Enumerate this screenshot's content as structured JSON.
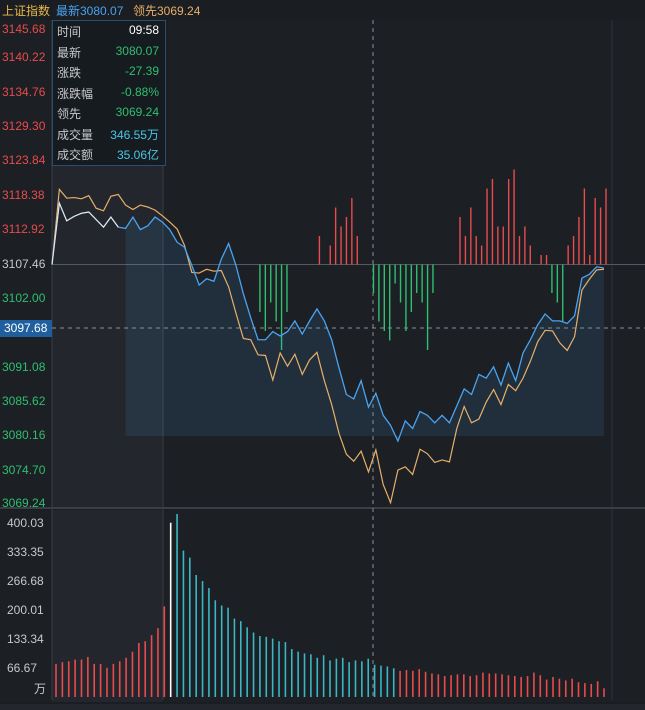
{
  "header": {
    "index_name": "上证指数",
    "latest_label": "最新",
    "latest_value": "3080.07",
    "leading_label": "领先",
    "leading_value": "3069.24"
  },
  "price_axis": {
    "labels": [
      "3145.68",
      "3140.22",
      "3134.76",
      "3129.30",
      "3123.84",
      "3118.38",
      "3112.92",
      "3107.46",
      "3102.00",
      "3091.08",
      "3085.62",
      "3080.16",
      "3074.70",
      "3069.24"
    ],
    "cursor_price": "3097.68"
  },
  "volume_axis": {
    "labels": [
      "400.03",
      "333.35",
      "266.68",
      "200.01",
      "133.34",
      "66.67"
    ],
    "unit": "万"
  },
  "tooltip": {
    "rows": [
      {
        "key": "时间",
        "value": "09:58"
      },
      {
        "key": "最新",
        "value": "3080.07"
      },
      {
        "key": "涨跌",
        "value": "-27.39"
      },
      {
        "key": "涨跌幅",
        "value": "-0.88%"
      },
      {
        "key": "领先",
        "value": "3069.24"
      },
      {
        "key": "成交量",
        "value": "346.55万"
      },
      {
        "key": "成交额",
        "value": "35.06亿"
      }
    ]
  },
  "colors": {
    "up": "#e84c4c",
    "down": "#2fbf6f",
    "price_line": "#4aa3f0",
    "lead_line": "#e7b06a",
    "time_text": "#ffffff",
    "volume_text": "#49c6e5",
    "cyan_bar": "#3ab7c4"
  },
  "chart_data": {
    "type": "line",
    "prev_close": 3107.46,
    "ylim": [
      3069.24,
      3145.68
    ],
    "price": [
      3107.46,
      3117.2,
      3114.4,
      3115.1,
      3115.6,
      3115.8,
      3114.6,
      3113.4,
      3115.0,
      3113.4,
      3113.2,
      3115.0,
      3113.0,
      3113.6,
      3115.0,
      3114.2,
      3113.0,
      3111.0,
      3110.2,
      3107.3,
      3104.2,
      3105.2,
      3104.8,
      3108.3,
      3110.8,
      3107.3,
      3102.8,
      3099.0,
      3095.5,
      3095.5,
      3096.8,
      3096.1,
      3096.8,
      3098.5,
      3096.4,
      3098.5,
      3100.4,
      3098.5,
      3095.5,
      3091.0,
      3086.8,
      3086.1,
      3089.0,
      3084.8,
      3087.0,
      3083.5,
      3081.9,
      3079.4,
      3082.6,
      3081.4,
      3084.1,
      3083.5,
      3082.3,
      3083.5,
      3082.3,
      3085.0,
      3087.7,
      3086.8,
      3090.0,
      3089.4,
      3091.2,
      3088.3,
      3091.8,
      3089.0,
      3093.4,
      3095.5,
      3097.9,
      3099.6,
      3098.5,
      3098.5,
      3098.1,
      3099.3,
      3105.3,
      3105.9,
      3107.1,
      3106.9
    ],
    "lead": [
      3107.46,
      3119.4,
      3118.0,
      3118.1,
      3117.9,
      3118.4,
      3116.4,
      3116.0,
      3118.3,
      3118.6,
      3116.9,
      3116.2,
      3116.9,
      3116.6,
      3116.1,
      3115.2,
      3114.2,
      3113.1,
      3110.5,
      3106.2,
      3106.1,
      3106.7,
      3106.4,
      3106.5,
      3103.9,
      3099.7,
      3095.7,
      3095.5,
      3093.1,
      3093.0,
      3089.1,
      3093.4,
      3091.3,
      3093.2,
      3090.0,
      3092.3,
      3093.5,
      3089.0,
      3085.2,
      3080.6,
      3077.3,
      3076.2,
      3077.8,
      3074.5,
      3078.0,
      3072.5,
      3069.6,
      3074.8,
      3075.3,
      3074.1,
      3078.1,
      3077.4,
      3076.0,
      3076.4,
      3076.1,
      3081.4,
      3084.9,
      3082.3,
      3082.9,
      3085.6,
      3087.6,
      3085.2,
      3088.4,
      3087.4,
      3089.4,
      3092.1,
      3095.2,
      3097.0,
      3096.9,
      3095.0,
      3093.8,
      3096.0,
      3103.4,
      3105.1,
      3106.6,
      3106.7
    ],
    "lead_ratio": [
      0,
      0,
      0,
      0,
      0,
      0,
      0,
      0,
      0,
      0,
      0,
      0,
      0,
      0,
      0,
      0,
      0,
      -0.5,
      -0.7,
      -0.4,
      -0.6,
      -0.9,
      -0.5,
      0,
      0,
      0,
      0,
      0,
      0.3,
      0,
      0.2,
      0.6,
      0.4,
      0.5,
      0.7,
      0.3,
      0,
      0,
      -0.3,
      -0.6,
      -0.7,
      -0.8,
      -0.2,
      -0.4,
      -0.7,
      -0.5,
      -0.3,
      -0.4,
      -0.9,
      -0.3,
      0,
      0,
      0,
      0,
      0.5,
      0.3,
      0.6,
      0.3,
      0.2,
      0.8,
      0.9,
      0.4,
      0.4,
      0.9,
      1.0,
      0.3,
      0.4,
      0.2,
      0,
      0.1,
      0.1,
      -0.3,
      -0.4,
      -0.6,
      0.2,
      0.3,
      0.5,
      0.8,
      0.1,
      0.7,
      0.6,
      0.8
    ],
    "volume": [
      76,
      80,
      82,
      86,
      86,
      92,
      76,
      76,
      67,
      76,
      82,
      90,
      104,
      124,
      128,
      142,
      158,
      208,
      400,
      420,
      336,
      320,
      280,
      266,
      250,
      222,
      210,
      205,
      180,
      174,
      160,
      148,
      140,
      138,
      134,
      128,
      126,
      110,
      104,
      100,
      98,
      90,
      96,
      84,
      88,
      90,
      80,
      84,
      82,
      88,
      74,
      72,
      70,
      66,
      60,
      62,
      60,
      64,
      58,
      54,
      52,
      48,
      50,
      52,
      52,
      48,
      50,
      56,
      54,
      54,
      52,
      50,
      48,
      46,
      48,
      56,
      50,
      40,
      46,
      42,
      38,
      42,
      34,
      32,
      30,
      36,
      20
    ],
    "volume_up": [
      true,
      true,
      true,
      true,
      true,
      true,
      true,
      true,
      true,
      true,
      true,
      true,
      true,
      true,
      true,
      true,
      true,
      true,
      true,
      false,
      false,
      false,
      false,
      false,
      false,
      false,
      false,
      false,
      false,
      false,
      false,
      false,
      false,
      false,
      false,
      false,
      false,
      false,
      false,
      false,
      false,
      false,
      false,
      false,
      false,
      false,
      false,
      false,
      false,
      false,
      false,
      false,
      false,
      false,
      true,
      true,
      true,
      true,
      true,
      true,
      true,
      true,
      true,
      true,
      true,
      true,
      true,
      true,
      true,
      true,
      true,
      true,
      true,
      true,
      true,
      true,
      true,
      true,
      true,
      true,
      true,
      true,
      true,
      true,
      true,
      true,
      true
    ],
    "ylim_volume": [
      0,
      420
    ]
  }
}
